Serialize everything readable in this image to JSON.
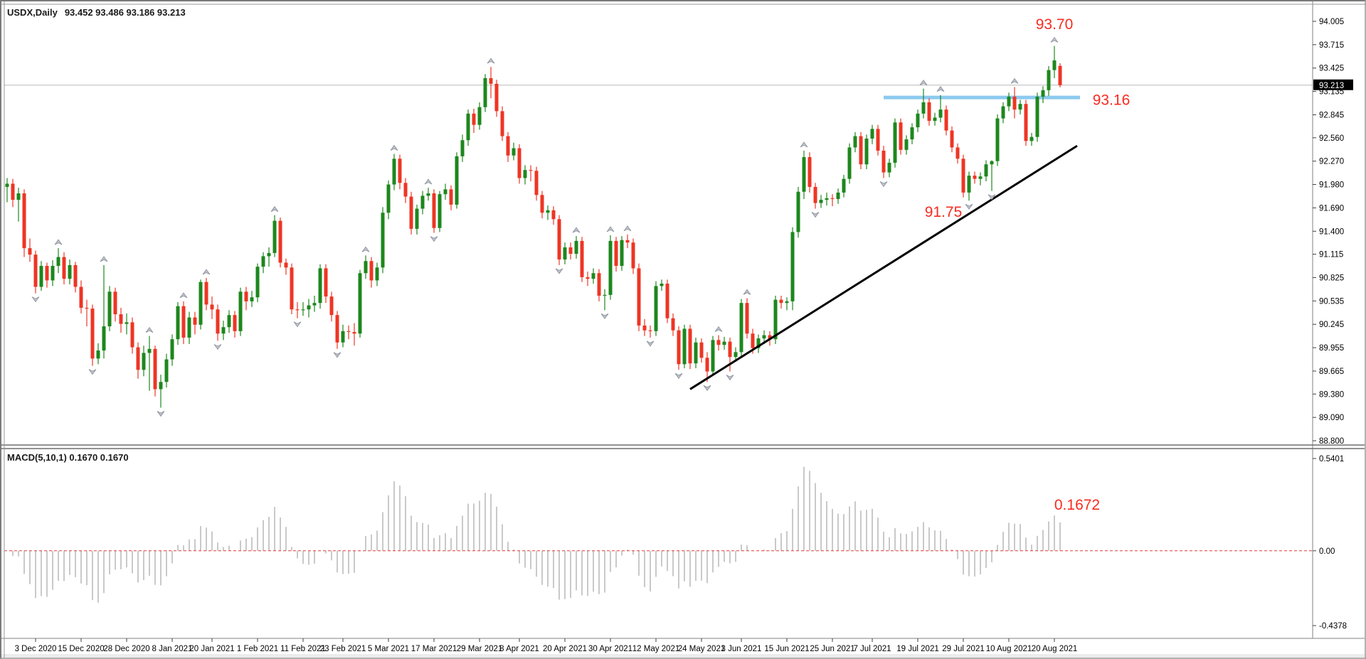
{
  "window": {
    "symbol_period": "USDX,Daily",
    "ohlc_line": "93.452 93.486 93.186 93.213"
  },
  "main_chart": {
    "price_axis_labels": [
      "94.005",
      "93.715",
      "93.425",
      "93.135",
      "92.845",
      "92.560",
      "92.270",
      "91.980",
      "91.690",
      "91.400",
      "91.115",
      "90.825",
      "90.535",
      "90.245",
      "89.955",
      "89.665",
      "89.380",
      "89.090",
      "88.800"
    ],
    "axis_top_price": 94.005,
    "axis_bottom_price": 88.8,
    "current_price": 93.213,
    "current_price_badge": "93.213",
    "current_price_line_color": "#b9b9b9",
    "annotations": [
      {
        "text": "93.70",
        "index": 184,
        "price": 93.97
      },
      {
        "text": "93.16",
        "index": 194,
        "price": 93.03
      },
      {
        "text": "91.75",
        "index": 164.5,
        "price": 91.64
      }
    ],
    "annotation_color": "#f82c20",
    "resistance_line": {
      "label_price": 93.16,
      "draw_price": 93.06,
      "from_index": 154,
      "to_index": 188.5,
      "color": "#8cc9ef",
      "width": 5
    },
    "trendline": {
      "from_index": 120,
      "from_price": 89.44,
      "to_index": 188,
      "to_price": 92.46,
      "color": "#000000",
      "width": 3
    },
    "fractal_fill": "#bcc2cc",
    "fractal_stroke": "#8a8f99"
  },
  "macd_panel": {
    "label": "MACD(5,10,1) 0.1670 0.1670",
    "fast_period": 5,
    "slow_period": 10,
    "signal_period": 1,
    "axis_max_label": "0.5401",
    "axis_zero_label": "0.00",
    "axis_min_label": "-0.4378",
    "axis_max": 0.5401,
    "axis_min": -0.4378,
    "annotation": {
      "text": "0.1672",
      "index": 188,
      "value": 0.27
    },
    "bar_color": "#c9c9c9",
    "zero_line_color": "#e03c3c"
  },
  "date_axis": {
    "labels": [
      "3 Dec 2020",
      "15 Dec 2020",
      "28 Dec 2020",
      "8 Jan 2021",
      "20 Jan 2021",
      "1 Feb 2021",
      "11 Feb 2021",
      "23 Feb 2021",
      "5 Mar 2021",
      "17 Mar 2021",
      "29 Mar 2021",
      "8 Apr 2021",
      "20 Apr 2021",
      "30 Apr 2021",
      "12 May 2021",
      "24 May 2021",
      "3 Jun 2021",
      "15 Jun 2021",
      "25 Jun 2021",
      "7 Jul 2021",
      "19 Jul 2021",
      "29 Jul 2021",
      "10 Aug 2021",
      "20 Aug 2021"
    ],
    "label_indices": [
      5,
      13,
      21,
      29,
      36,
      44,
      52,
      59,
      67,
      75,
      83,
      90,
      98,
      106,
      114,
      122,
      129,
      137,
      145,
      152,
      160,
      168,
      176,
      184
    ]
  },
  "chart_data": {
    "type": "candlestick",
    "symbol": "USDX",
    "timeframe": "Daily",
    "title": "USDX,Daily 93.452 93.486 93.186 93.213",
    "ylim": [
      88.8,
      94.005
    ],
    "legend_position": "none",
    "grid": false,
    "colors": {
      "up": "#1d871d",
      "down": "#ee3524"
    },
    "last_bar_ohlc": [
      93.452,
      93.486,
      93.186,
      93.213
    ],
    "candles": [
      [
        91.95,
        92.06,
        91.76,
        91.99
      ],
      [
        91.99,
        92.05,
        91.7,
        91.79
      ],
      [
        91.79,
        91.94,
        91.52,
        91.87
      ],
      [
        91.87,
        91.92,
        91.08,
        91.19
      ],
      [
        91.19,
        91.31,
        91.02,
        91.11
      ],
      [
        91.11,
        91.16,
        90.63,
        90.71
      ],
      [
        90.71,
        91.03,
        90.66,
        90.97
      ],
      [
        90.97,
        91.01,
        90.7,
        90.79
      ],
      [
        90.79,
        91.04,
        90.72,
        90.97
      ],
      [
        90.97,
        91.19,
        90.88,
        91.08
      ],
      [
        91.08,
        91.14,
        90.74,
        90.81
      ],
      [
        90.81,
        91.05,
        90.74,
        90.98
      ],
      [
        90.98,
        91.02,
        90.64,
        90.71
      ],
      [
        90.71,
        90.79,
        90.38,
        90.45
      ],
      [
        90.45,
        90.55,
        90.22,
        90.44
      ],
      [
        90.44,
        90.49,
        89.73,
        89.82
      ],
      [
        89.82,
        90.01,
        89.75,
        89.92
      ],
      [
        89.92,
        90.98,
        89.82,
        90.22
      ],
      [
        90.22,
        90.72,
        90.16,
        90.65
      ],
      [
        90.65,
        90.7,
        90.28,
        90.37
      ],
      [
        90.37,
        90.45,
        90.14,
        90.25
      ],
      [
        90.25,
        90.38,
        90.12,
        90.27
      ],
      [
        90.27,
        90.33,
        89.88,
        89.96
      ],
      [
        89.96,
        90.02,
        89.57,
        89.68
      ],
      [
        89.68,
        89.98,
        89.6,
        89.89
      ],
      [
        89.89,
        90.1,
        89.42,
        89.94
      ],
      [
        89.94,
        89.98,
        89.35,
        89.44
      ],
      [
        89.44,
        89.62,
        89.21,
        89.53
      ],
      [
        89.53,
        89.88,
        89.46,
        89.81
      ],
      [
        89.81,
        90.12,
        89.73,
        90.06
      ],
      [
        90.06,
        90.52,
        89.99,
        90.47
      ],
      [
        90.47,
        90.53,
        90.0,
        90.08
      ],
      [
        90.08,
        90.4,
        90.0,
        90.33
      ],
      [
        90.33,
        90.4,
        90.12,
        90.24
      ],
      [
        90.24,
        90.8,
        90.18,
        90.77
      ],
      [
        90.77,
        90.82,
        90.42,
        90.49
      ],
      [
        90.49,
        90.59,
        90.31,
        90.43
      ],
      [
        90.43,
        90.49,
        90.04,
        90.13
      ],
      [
        90.13,
        90.29,
        90.05,
        90.21
      ],
      [
        90.21,
        90.42,
        90.14,
        90.36
      ],
      [
        90.36,
        90.41,
        90.08,
        90.16
      ],
      [
        90.16,
        90.7,
        90.1,
        90.65
      ],
      [
        90.65,
        90.71,
        90.42,
        90.53
      ],
      [
        90.53,
        90.66,
        90.46,
        90.58
      ],
      [
        90.58,
        91.0,
        90.52,
        90.96
      ],
      [
        90.96,
        91.14,
        90.88,
        91.09
      ],
      [
        91.09,
        91.2,
        90.96,
        91.13
      ],
      [
        91.13,
        91.6,
        91.08,
        91.53
      ],
      [
        91.53,
        91.57,
        90.95,
        91.01
      ],
      [
        91.01,
        91.06,
        90.86,
        90.95
      ],
      [
        90.95,
        91.0,
        90.37,
        90.43
      ],
      [
        90.43,
        90.52,
        90.32,
        90.42
      ],
      [
        90.42,
        90.52,
        90.35,
        90.43
      ],
      [
        90.43,
        90.56,
        90.33,
        90.48
      ],
      [
        90.48,
        90.6,
        90.4,
        90.51
      ],
      [
        90.51,
        90.99,
        90.44,
        90.94
      ],
      [
        90.94,
        90.99,
        90.51,
        90.59
      ],
      [
        90.59,
        90.65,
        90.28,
        90.36
      ],
      [
        90.36,
        90.41,
        89.94,
        90.02
      ],
      [
        90.02,
        90.24,
        89.96,
        90.16
      ],
      [
        90.16,
        90.23,
        90.06,
        90.15
      ],
      [
        90.15,
        90.26,
        89.98,
        90.13
      ],
      [
        90.13,
        90.92,
        90.08,
        90.88
      ],
      [
        90.88,
        91.1,
        90.81,
        91.03
      ],
      [
        91.03,
        91.08,
        90.7,
        90.79
      ],
      [
        90.79,
        91.01,
        90.72,
        90.95
      ],
      [
        90.95,
        91.7,
        90.88,
        91.63
      ],
      [
        91.63,
        92.03,
        91.55,
        91.98
      ],
      [
        91.98,
        92.36,
        91.91,
        92.3
      ],
      [
        92.3,
        92.35,
        91.92,
        92.0
      ],
      [
        92.0,
        92.06,
        91.75,
        91.83
      ],
      [
        91.83,
        91.89,
        91.36,
        91.43
      ],
      [
        91.43,
        91.73,
        91.36,
        91.68
      ],
      [
        91.68,
        91.9,
        91.61,
        91.84
      ],
      [
        91.84,
        91.94,
        91.78,
        91.87
      ],
      [
        91.87,
        91.92,
        91.38,
        91.44
      ],
      [
        91.44,
        91.9,
        91.39,
        91.86
      ],
      [
        91.86,
        91.99,
        91.79,
        91.92
      ],
      [
        91.92,
        91.97,
        91.66,
        91.73
      ],
      [
        91.73,
        92.38,
        91.68,
        92.33
      ],
      [
        92.33,
        92.6,
        92.26,
        92.53
      ],
      [
        92.53,
        92.91,
        92.46,
        92.86
      ],
      [
        92.86,
        92.92,
        92.62,
        92.72
      ],
      [
        92.72,
        93.0,
        92.66,
        92.94
      ],
      [
        92.94,
        93.35,
        92.88,
        93.3
      ],
      [
        93.3,
        93.44,
        93.05,
        93.23
      ],
      [
        93.23,
        93.28,
        92.82,
        92.89
      ],
      [
        92.89,
        92.95,
        92.52,
        92.58
      ],
      [
        92.58,
        92.63,
        92.26,
        92.34
      ],
      [
        92.34,
        92.5,
        92.28,
        92.43
      ],
      [
        92.43,
        92.48,
        91.99,
        92.06
      ],
      [
        92.06,
        92.22,
        91.98,
        92.16
      ],
      [
        92.16,
        92.22,
        92.02,
        92.15
      ],
      [
        92.15,
        92.2,
        91.78,
        91.85
      ],
      [
        91.85,
        91.9,
        91.56,
        91.63
      ],
      [
        91.63,
        91.72,
        91.54,
        91.66
      ],
      [
        91.66,
        91.71,
        91.48,
        91.55
      ],
      [
        91.55,
        91.6,
        90.98,
        91.05
      ],
      [
        91.05,
        91.26,
        90.99,
        91.2
      ],
      [
        91.2,
        91.26,
        91.05,
        91.12
      ],
      [
        91.12,
        91.34,
        91.06,
        91.28
      ],
      [
        91.28,
        91.33,
        90.77,
        90.83
      ],
      [
        90.83,
        90.9,
        90.72,
        90.81
      ],
      [
        90.81,
        90.94,
        90.75,
        90.88
      ],
      [
        90.88,
        90.93,
        90.53,
        90.6
      ],
      [
        90.6,
        90.68,
        90.42,
        90.61
      ],
      [
        90.61,
        91.35,
        90.55,
        91.28
      ],
      [
        91.28,
        91.33,
        90.9,
        90.97
      ],
      [
        90.97,
        91.34,
        90.91,
        91.29
      ],
      [
        91.29,
        91.36,
        91.19,
        91.26
      ],
      [
        91.26,
        91.31,
        90.87,
        90.94
      ],
      [
        90.94,
        91.0,
        90.16,
        90.23
      ],
      [
        90.23,
        90.31,
        90.1,
        90.17
      ],
      [
        90.17,
        90.23,
        90.08,
        90.16
      ],
      [
        90.16,
        90.78,
        90.1,
        90.72
      ],
      [
        90.72,
        90.8,
        90.66,
        90.75
      ],
      [
        90.75,
        90.8,
        90.26,
        90.32
      ],
      [
        90.32,
        90.38,
        90.1,
        90.17
      ],
      [
        90.17,
        90.22,
        89.68,
        89.75
      ],
      [
        89.75,
        90.24,
        89.7,
        90.19
      ],
      [
        90.19,
        90.24,
        89.69,
        89.76
      ],
      [
        89.76,
        90.08,
        89.7,
        90.02
      ],
      [
        90.02,
        90.07,
        89.77,
        89.83
      ],
      [
        89.83,
        89.9,
        89.53,
        89.66
      ],
      [
        89.66,
        90.1,
        89.61,
        90.05
      ],
      [
        90.05,
        90.11,
        89.92,
        89.99
      ],
      [
        89.99,
        90.09,
        89.93,
        90.03
      ],
      [
        90.03,
        90.08,
        89.66,
        89.84
      ],
      [
        89.84,
        89.96,
        89.78,
        89.9
      ],
      [
        89.9,
        90.56,
        89.84,
        90.51
      ],
      [
        90.51,
        90.57,
        90.07,
        90.13
      ],
      [
        90.13,
        90.19,
        89.88,
        89.95
      ],
      [
        89.95,
        90.12,
        89.89,
        90.07
      ],
      [
        90.07,
        90.17,
        90.0,
        90.11
      ],
      [
        90.11,
        90.16,
        89.98,
        90.06
      ],
      [
        90.06,
        90.6,
        90.0,
        90.55
      ],
      [
        90.55,
        90.6,
        90.44,
        90.51
      ],
      [
        90.51,
        90.58,
        90.42,
        90.53
      ],
      [
        90.53,
        91.45,
        90.42,
        91.39
      ],
      [
        91.39,
        91.95,
        91.32,
        91.89
      ],
      [
        91.89,
        92.4,
        91.8,
        92.32
      ],
      [
        92.32,
        92.38,
        91.88,
        91.95
      ],
      [
        91.95,
        92.0,
        91.68,
        91.75
      ],
      [
        91.75,
        91.85,
        91.69,
        91.79
      ],
      [
        91.79,
        91.88,
        91.72,
        91.81
      ],
      [
        91.81,
        91.86,
        91.71,
        91.8
      ],
      [
        91.8,
        91.93,
        91.74,
        91.88
      ],
      [
        91.88,
        92.1,
        91.82,
        92.05
      ],
      [
        92.05,
        92.49,
        91.99,
        92.44
      ],
      [
        92.44,
        92.63,
        92.38,
        92.58
      ],
      [
        92.58,
        92.63,
        92.17,
        92.23
      ],
      [
        92.23,
        92.6,
        92.17,
        92.55
      ],
      [
        92.55,
        92.72,
        92.48,
        92.67
      ],
      [
        92.67,
        92.72,
        92.34,
        92.4
      ],
      [
        92.4,
        92.46,
        92.06,
        92.13
      ],
      [
        92.13,
        92.3,
        92.07,
        92.25
      ],
      [
        92.25,
        92.8,
        92.19,
        92.75
      ],
      [
        92.75,
        92.8,
        92.35,
        92.41
      ],
      [
        92.41,
        92.59,
        92.35,
        92.54
      ],
      [
        92.54,
        92.74,
        92.48,
        92.69
      ],
      [
        92.69,
        92.91,
        92.63,
        92.86
      ],
      [
        92.86,
        93.17,
        92.8,
        93.0
      ],
      [
        93.0,
        93.05,
        92.71,
        92.77
      ],
      [
        92.77,
        92.87,
        92.71,
        92.81
      ],
      [
        92.81,
        93.09,
        92.75,
        92.91
      ],
      [
        92.91,
        92.96,
        92.59,
        92.65
      ],
      [
        92.65,
        92.7,
        92.38,
        92.44
      ],
      [
        92.44,
        92.49,
        92.24,
        92.3
      ],
      [
        92.3,
        92.35,
        91.82,
        91.88
      ],
      [
        91.88,
        92.14,
        91.78,
        92.09
      ],
      [
        92.09,
        92.14,
        91.99,
        92.05
      ],
      [
        92.05,
        92.13,
        91.97,
        92.08
      ],
      [
        92.08,
        92.28,
        92.02,
        92.23
      ],
      [
        92.23,
        92.28,
        91.9,
        92.27
      ],
      [
        92.27,
        92.85,
        92.21,
        92.8
      ],
      [
        92.8,
        93.0,
        92.74,
        92.95
      ],
      [
        92.95,
        93.12,
        92.89,
        93.07
      ],
      [
        93.07,
        93.19,
        92.8,
        92.91
      ],
      [
        92.91,
        93.03,
        92.85,
        92.98
      ],
      [
        92.98,
        93.03,
        92.46,
        92.52
      ],
      [
        92.52,
        92.62,
        92.46,
        92.57
      ],
      [
        92.57,
        93.12,
        92.51,
        93.07
      ],
      [
        93.07,
        93.2,
        92.99,
        93.15
      ],
      [
        93.15,
        93.45,
        93.08,
        93.4
      ],
      [
        93.4,
        93.7,
        93.3,
        93.52
      ],
      [
        93.452,
        93.486,
        93.186,
        93.213
      ]
    ]
  }
}
